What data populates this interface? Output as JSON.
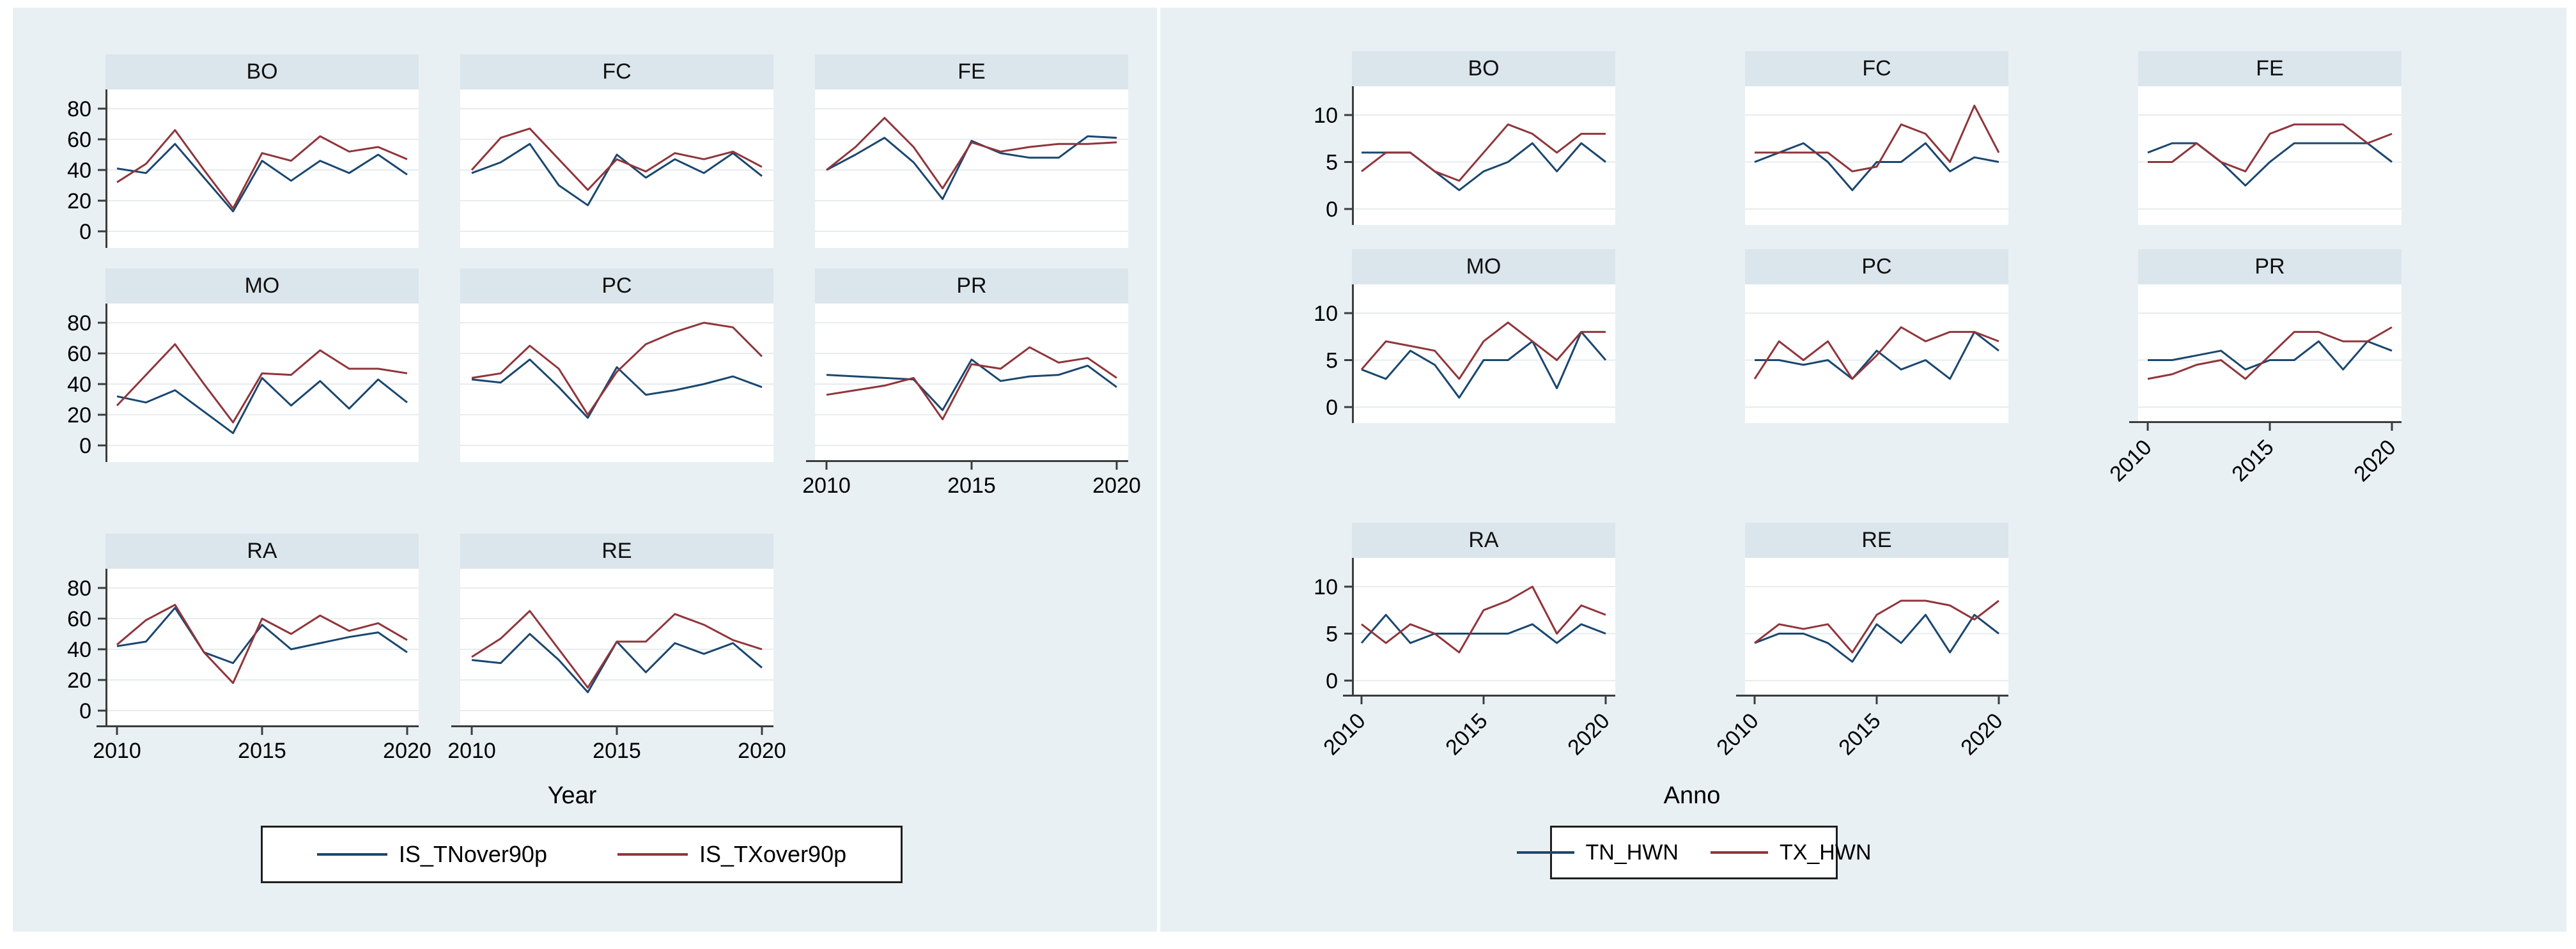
{
  "styles": {
    "figure_background": "#e9f0f4",
    "panel_band_background": "#dbe5ec",
    "gridline_color": "#e7ecef",
    "axis_color": "#3c3c3c",
    "series1_color": "#1a476f",
    "series2_color": "#90353b"
  },
  "chart_data": [
    {
      "id": "left",
      "type": "line",
      "title": "",
      "xlabel": "Year",
      "ylabel": "",
      "x": [
        2010,
        2011,
        2012,
        2013,
        2014,
        2015,
        2016,
        2017,
        2018,
        2019,
        2020
      ],
      "xticks": [
        2010,
        2015,
        2020
      ],
      "ylim": [
        0,
        80
      ],
      "yticks": [
        0,
        20,
        40,
        60,
        80
      ],
      "x_tick_angle": 0,
      "grid": true,
      "legend_position": "bottom",
      "legend_items": [
        {
          "label": "IS_TNover90p",
          "color": "#1a476f"
        },
        {
          "label": "IS_TXover90p",
          "color": "#90353b"
        }
      ],
      "panels": [
        {
          "title": "BO",
          "row": 0,
          "col": 0,
          "x_axis": false,
          "series": [
            {
              "name": "IS_TNover90p",
              "values": [
                41,
                38,
                57,
                35,
                13,
                46,
                33,
                46,
                38,
                50,
                37
              ]
            },
            {
              "name": "IS_TXover90p",
              "values": [
                32,
                44,
                66,
                40,
                15,
                51,
                46,
                62,
                52,
                55,
                47
              ]
            }
          ]
        },
        {
          "title": "FC",
          "row": 0,
          "col": 1,
          "x_axis": false,
          "series": [
            {
              "name": "IS_TNover90p",
              "values": [
                38,
                45,
                57,
                30,
                17,
                50,
                35,
                47,
                38,
                51,
                36
              ]
            },
            {
              "name": "IS_TXover90p",
              "values": [
                40,
                61,
                67,
                47,
                27,
                47,
                39,
                51,
                47,
                52,
                42
              ]
            }
          ]
        },
        {
          "title": "FE",
          "row": 0,
          "col": 2,
          "x_axis": false,
          "series": [
            {
              "name": "IS_TNover90p",
              "values": [
                40,
                50,
                61,
                45,
                21,
                59,
                51,
                48,
                48,
                62,
                61
              ]
            },
            {
              "name": "IS_TXover90p",
              "values": [
                40,
                55,
                74,
                55,
                28,
                58,
                52,
                55,
                57,
                57,
                58
              ]
            }
          ]
        },
        {
          "title": "MO",
          "row": 1,
          "col": 0,
          "x_axis": false,
          "series": [
            {
              "name": "IS_TNover90p",
              "values": [
                32,
                28,
                36,
                22,
                8,
                44,
                26,
                42,
                24,
                43,
                28
              ]
            },
            {
              "name": "IS_TXover90p",
              "values": [
                26,
                46,
                66,
                40,
                15,
                47,
                46,
                62,
                50,
                50,
                47
              ]
            }
          ]
        },
        {
          "title": "PC",
          "row": 1,
          "col": 1,
          "x_axis": false,
          "series": [
            {
              "name": "IS_TNover90p",
              "values": [
                43,
                41,
                56,
                38,
                18,
                51,
                33,
                36,
                40,
                45,
                38
              ]
            },
            {
              "name": "IS_TXover90p",
              "values": [
                44,
                47,
                65,
                50,
                20,
                48,
                66,
                74,
                80,
                77,
                58
              ]
            }
          ]
        },
        {
          "title": "PR",
          "row": 1,
          "col": 2,
          "x_axis": true,
          "series": [
            {
              "name": "IS_TNover90p",
              "values": [
                46,
                45,
                44,
                43,
                23,
                56,
                42,
                45,
                46,
                52,
                38
              ]
            },
            {
              "name": "IS_TXover90p",
              "values": [
                33,
                36,
                39,
                44,
                17,
                53,
                50,
                64,
                54,
                57,
                44
              ]
            }
          ]
        },
        {
          "title": "RA",
          "row": 2,
          "col": 0,
          "x_axis": true,
          "series": [
            {
              "name": "IS_TNover90p",
              "values": [
                42,
                45,
                67,
                38,
                31,
                56,
                40,
                44,
                48,
                51,
                38
              ]
            },
            {
              "name": "IS_TXover90p",
              "values": [
                43,
                59,
                69,
                38,
                18,
                60,
                50,
                62,
                52,
                57,
                46
              ]
            }
          ]
        },
        {
          "title": "RE",
          "row": 2,
          "col": 1,
          "x_axis": true,
          "series": [
            {
              "name": "IS_TNover90p",
              "values": [
                33,
                31,
                50,
                33,
                12,
                45,
                25,
                44,
                37,
                44,
                28
              ]
            },
            {
              "name": "IS_TXover90p",
              "values": [
                35,
                47,
                65,
                40,
                15,
                45,
                45,
                63,
                56,
                46,
                40
              ]
            }
          ]
        }
      ]
    },
    {
      "id": "right",
      "type": "line",
      "title": "",
      "xlabel": "Anno",
      "ylabel": "",
      "x": [
        2010,
        2011,
        2012,
        2013,
        2014,
        2015,
        2016,
        2017,
        2018,
        2019,
        2020
      ],
      "xticks": [
        2010,
        2015,
        2020
      ],
      "ylim": [
        0,
        10
      ],
      "yticks": [
        0,
        5,
        10
      ],
      "x_tick_angle": 45,
      "grid": true,
      "legend_position": "bottom",
      "legend_items": [
        {
          "label": "TN_HWN",
          "color": "#1a476f"
        },
        {
          "label": "TX_HWN",
          "color": "#90353b"
        }
      ],
      "panels": [
        {
          "title": "BO",
          "row": 0,
          "col": 0,
          "x_axis": false,
          "series": [
            {
              "name": "TN_HWN",
              "values": [
                6,
                6,
                6,
                4,
                2,
                4,
                5,
                7,
                4,
                7,
                5
              ]
            },
            {
              "name": "TX_HWN",
              "values": [
                4,
                6,
                6,
                4,
                3,
                6,
                9,
                8,
                6,
                8,
                8
              ]
            }
          ]
        },
        {
          "title": "FC",
          "row": 0,
          "col": 1,
          "x_axis": false,
          "series": [
            {
              "name": "TN_HWN",
              "values": [
                5,
                6,
                7,
                5,
                2,
                5,
                5,
                7,
                4,
                5.5,
                5
              ]
            },
            {
              "name": "TX_HWN",
              "values": [
                6,
                6,
                6,
                6,
                4,
                4.5,
                9,
                8,
                5,
                11,
                6
              ]
            }
          ]
        },
        {
          "title": "FE",
          "row": 0,
          "col": 2,
          "x_axis": false,
          "series": [
            {
              "name": "TN_HWN",
              "values": [
                6,
                7,
                7,
                5,
                2.5,
                5,
                7,
                7,
                7,
                7,
                5
              ]
            },
            {
              "name": "TX_HWN",
              "values": [
                5,
                5,
                7,
                5,
                4,
                8,
                9,
                9,
                9,
                7,
                8
              ]
            }
          ]
        },
        {
          "title": "MO",
          "row": 1,
          "col": 0,
          "x_axis": false,
          "series": [
            {
              "name": "TN_HWN",
              "values": [
                4,
                3,
                6,
                4.5,
                1,
                5,
                5,
                7,
                2,
                8,
                5
              ]
            },
            {
              "name": "TX_HWN",
              "values": [
                4,
                7,
                6.5,
                6,
                3,
                7,
                9,
                7,
                5,
                8,
                8
              ]
            }
          ]
        },
        {
          "title": "PC",
          "row": 1,
          "col": 1,
          "x_axis": false,
          "series": [
            {
              "name": "TN_HWN",
              "values": [
                5,
                5,
                4.5,
                5,
                3,
                6,
                4,
                5,
                3,
                8,
                6
              ]
            },
            {
              "name": "TX_HWN",
              "values": [
                3,
                7,
                5,
                7,
                3,
                5.5,
                8.5,
                7,
                8,
                8,
                7
              ]
            }
          ]
        },
        {
          "title": "PR",
          "row": 1,
          "col": 2,
          "x_axis": true,
          "series": [
            {
              "name": "TN_HWN",
              "values": [
                5,
                5,
                5.5,
                6,
                4,
                5,
                5,
                7,
                4,
                7,
                6
              ]
            },
            {
              "name": "TX_HWN",
              "values": [
                3,
                3.5,
                4.5,
                5,
                3,
                5.5,
                8,
                8,
                7,
                7,
                8.5
              ]
            }
          ]
        },
        {
          "title": "RA",
          "row": 2,
          "col": 0,
          "x_axis": true,
          "series": [
            {
              "name": "TN_HWN",
              "values": [
                4,
                7,
                4,
                5,
                5,
                5,
                5,
                6,
                4,
                6,
                5
              ]
            },
            {
              "name": "TX_HWN",
              "values": [
                6,
                4,
                6,
                5,
                3,
                7.5,
                8.5,
                10,
                5,
                8,
                7
              ]
            }
          ]
        },
        {
          "title": "RE",
          "row": 2,
          "col": 1,
          "x_axis": true,
          "series": [
            {
              "name": "TN_HWN",
              "values": [
                4,
                5,
                5,
                4,
                2,
                6,
                4,
                7,
                3,
                7,
                5
              ]
            },
            {
              "name": "TX_HWN",
              "values": [
                4,
                6,
                5.5,
                6,
                3,
                7,
                8.5,
                8.5,
                8,
                6.5,
                8.5
              ]
            }
          ]
        }
      ]
    }
  ]
}
